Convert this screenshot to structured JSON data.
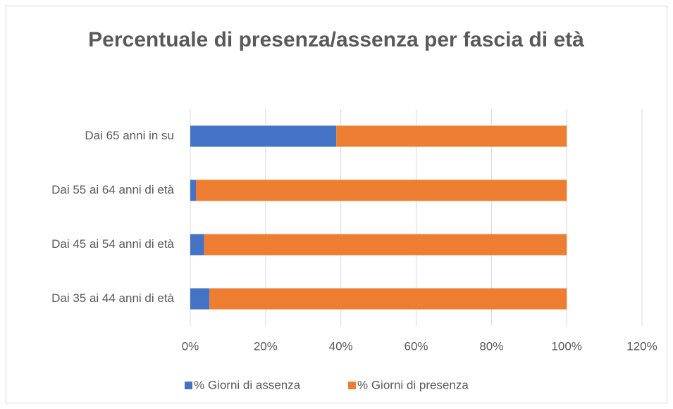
{
  "chart_data": {
    "type": "stacked-barh",
    "title": "Percentuale di presenza/assenza per fascia di età",
    "categories": [
      "Dai 35 ai 44 anni di età",
      "Dai 45 ai 54 anni di età",
      "Dai 55 ai 64 anni di età",
      "Dai 65 anni in su"
    ],
    "series": [
      {
        "name": "% Giorni di assenza",
        "color": "#4472c4",
        "values": [
          5.1,
          3.7,
          1.5,
          38.8
        ]
      },
      {
        "name": "% Giorni di presenza",
        "color": "#ed7d31",
        "values": [
          94.9,
          96.3,
          98.5,
          61.2
        ]
      }
    ],
    "xlim": [
      0,
      120
    ],
    "xticks": [
      {
        "value": 0,
        "label": "0%"
      },
      {
        "value": 20,
        "label": "20%"
      },
      {
        "value": 40,
        "label": "40%"
      },
      {
        "value": 60,
        "label": "60%"
      },
      {
        "value": 80,
        "label": "80%"
      },
      {
        "value": 100,
        "label": "100%"
      },
      {
        "value": 120,
        "label": "120%"
      }
    ],
    "grid": true,
    "legend": "bottom"
  }
}
